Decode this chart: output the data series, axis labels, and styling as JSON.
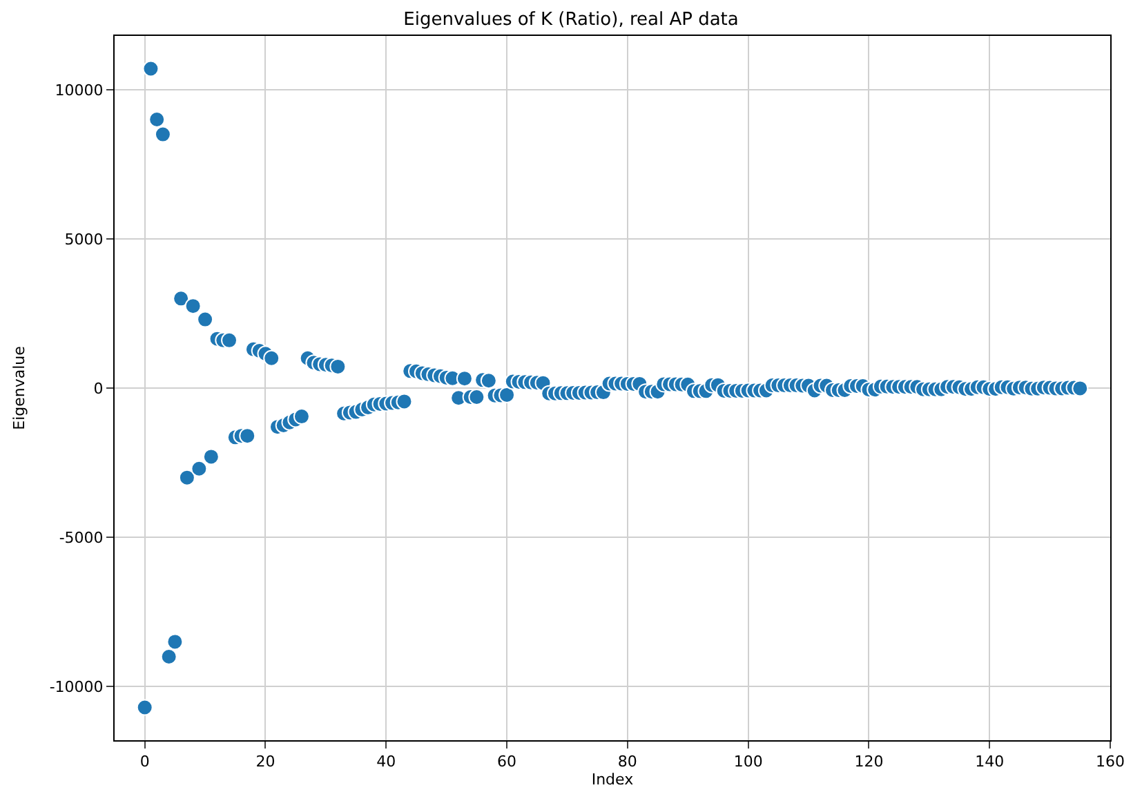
{
  "chart_data": {
    "type": "scatter",
    "title": "Eigenvalues of K (Ratio), real AP data",
    "xlabel": "Index",
    "ylabel": "Eigenvalue",
    "x": [
      0,
      1,
      2,
      3,
      4,
      5,
      6,
      7,
      8,
      9,
      10,
      11,
      12,
      13,
      14,
      15,
      16,
      17,
      18,
      19,
      20,
      21,
      22,
      23,
      24,
      25,
      26,
      27,
      28,
      29,
      30,
      31,
      32,
      33,
      34,
      35,
      36,
      37,
      38,
      39,
      40,
      41,
      42,
      43,
      44,
      45,
      46,
      47,
      48,
      49,
      50,
      51,
      52,
      53,
      54,
      55,
      56,
      57,
      58,
      59,
      60,
      61,
      62,
      63,
      64,
      65,
      66,
      67,
      68,
      69,
      70,
      71,
      72,
      73,
      74,
      75,
      76,
      77,
      78,
      79,
      80,
      81,
      82,
      83,
      84,
      85,
      86,
      87,
      88,
      89,
      90,
      91,
      92,
      93,
      94,
      95,
      96,
      97,
      98,
      99,
      100,
      101,
      102,
      103,
      104,
      105,
      106,
      107,
      108,
      109,
      110,
      111,
      112,
      113,
      114,
      115,
      116,
      117,
      118,
      119,
      120,
      121,
      122,
      123,
      124,
      125,
      126,
      127,
      128,
      129,
      130,
      131,
      132,
      133,
      134,
      135,
      136,
      137,
      138,
      139,
      140,
      141,
      142,
      143,
      144,
      145,
      146,
      147,
      148,
      149,
      150,
      151,
      152,
      153,
      154,
      155
    ],
    "series": [
      {
        "color": "#1f77b4",
        "values": [
          -10700,
          10700,
          9000,
          8500,
          -9000,
          -8500,
          3000,
          -3000,
          2750,
          -2700,
          2300,
          -2300,
          1650,
          1600,
          1600,
          -1650,
          -1600,
          -1600,
          1300,
          1250,
          1150,
          1000,
          -1300,
          -1250,
          -1150,
          -1050,
          -950,
          1000,
          850,
          800,
          780,
          760,
          720,
          -850,
          -820,
          -800,
          -720,
          -650,
          -550,
          -530,
          -520,
          -500,
          -480,
          -450,
          570,
          560,
          500,
          460,
          430,
          400,
          350,
          330,
          -330,
          320,
          -300,
          -300,
          270,
          250,
          -250,
          -240,
          -230,
          220,
          210,
          200,
          190,
          180,
          170,
          -180,
          -180,
          -170,
          -170,
          -160,
          -160,
          -150,
          -150,
          -140,
          -140,
          150,
          150,
          150,
          140,
          140,
          140,
          -120,
          -120,
          -120,
          130,
          130,
          130,
          120,
          120,
          -100,
          -100,
          -100,
          100,
          100,
          -90,
          -90,
          -90,
          -90,
          -80,
          -80,
          -80,
          -80,
          90,
          90,
          90,
          90,
          90,
          80,
          80,
          -80,
          80,
          80,
          -70,
          -70,
          -70,
          70,
          70,
          70,
          -50,
          -50,
          50,
          50,
          40,
          40,
          40,
          40,
          40,
          -40,
          -40,
          -40,
          -40,
          40,
          40,
          30,
          -30,
          -30,
          30,
          30,
          -30,
          -30,
          30,
          30,
          -20,
          20,
          20,
          -20,
          -20,
          20,
          10,
          -10,
          -10,
          10,
          10,
          -10
        ]
      }
    ],
    "xlim": [
      -5,
      160
    ],
    "xticks": [
      0,
      20,
      40,
      60,
      80,
      100,
      120,
      140,
      160
    ],
    "ylim": [
      -11800,
      11800
    ],
    "yticks": [
      -10000,
      -5000,
      0,
      5000,
      10000
    ],
    "grid": true,
    "marker": "circle"
  }
}
